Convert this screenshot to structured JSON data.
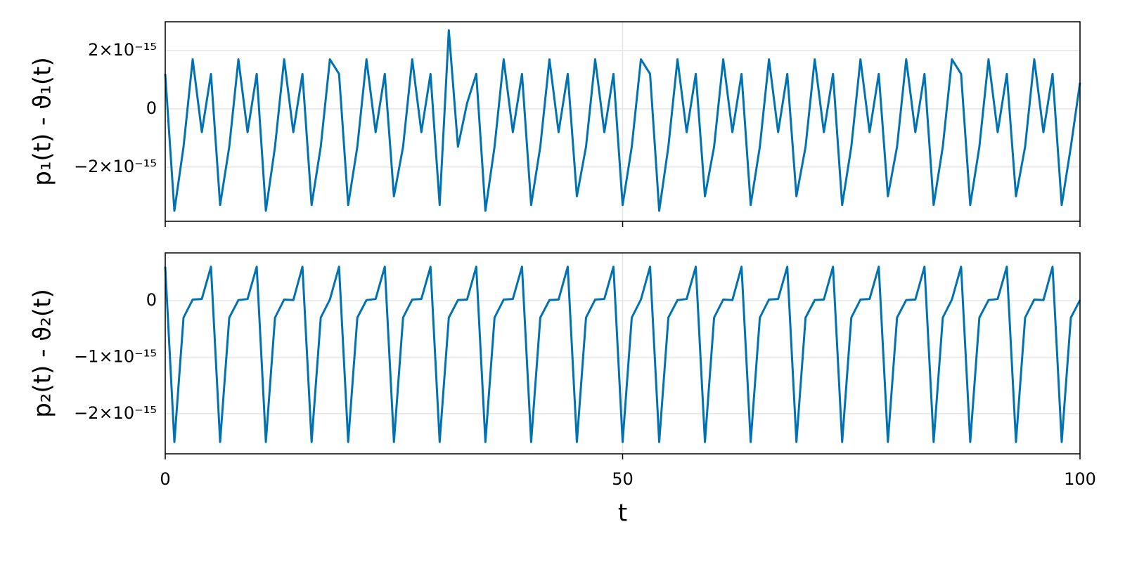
{
  "chart_data": [
    {
      "type": "line",
      "ylabel": "p₁(t) - ϑ₁(t)",
      "x": [
        0,
        1,
        2,
        3,
        4,
        5,
        6,
        7,
        8,
        9,
        10,
        11,
        12,
        13,
        14,
        15,
        16,
        17,
        18,
        19,
        20,
        21,
        22,
        23,
        24,
        25,
        26,
        27,
        28,
        29,
        30,
        31,
        32,
        33,
        34,
        35,
        36,
        37,
        38,
        39,
        40,
        41,
        42,
        43,
        44,
        45,
        46,
        47,
        48,
        49,
        50,
        51,
        52,
        53,
        54,
        55,
        56,
        57,
        58,
        59,
        60,
        61,
        62,
        63,
        64,
        65,
        66,
        67,
        68,
        69,
        70,
        71,
        72,
        73,
        74,
        75,
        76,
        77,
        78,
        79,
        80,
        81,
        82,
        83,
        84,
        85,
        86,
        87,
        88,
        89,
        90,
        91,
        92,
        93,
        94,
        95,
        96,
        97,
        98,
        99,
        100
      ],
      "series": [
        {
          "color": "#0072b2",
          "values": [
            1.2e-15,
            -3.5e-15,
            -1.3e-15,
            1.7e-15,
            -8e-16,
            1.2e-15,
            -3.3e-15,
            -1.3e-15,
            1.7e-15,
            -8e-16,
            1.2e-15,
            -3.5e-15,
            -1.3e-15,
            1.7e-15,
            -8e-16,
            1.2e-15,
            -3.3e-15,
            -1.3e-15,
            1.7e-15,
            1.2e-15,
            -3.3e-15,
            -1.3e-15,
            1.7e-15,
            -8e-16,
            1.2e-15,
            -3e-15,
            -1.3e-15,
            1.7e-15,
            -8e-16,
            1.2e-15,
            -3.3e-15,
            2.7e-15,
            -1.3e-15,
            2e-16,
            1.2e-15,
            -3.5e-15,
            -1.3e-15,
            1.7e-15,
            -8e-16,
            1.2e-15,
            -3.3e-15,
            -1.3e-15,
            1.7e-15,
            -8e-16,
            1.2e-15,
            -3e-15,
            -1.3e-15,
            1.7e-15,
            -8e-16,
            1.2e-15,
            -3.3e-15,
            -1.3e-15,
            1.7e-15,
            1.2e-15,
            -3.5e-15,
            -1.3e-15,
            1.7e-15,
            -8e-16,
            1.2e-15,
            -3e-15,
            -1.3e-15,
            1.7e-15,
            -8e-16,
            1.2e-15,
            -3.3e-15,
            -1.3e-15,
            1.7e-15,
            -8e-16,
            1.2e-15,
            -3e-15,
            -1.3e-15,
            1.7e-15,
            -8e-16,
            1.2e-15,
            -3.3e-15,
            -1.3e-15,
            1.7e-15,
            -8e-16,
            1.2e-15,
            -3e-15,
            -1.3e-15,
            1.7e-15,
            -8e-16,
            1.2e-15,
            -3.3e-15,
            -1.3e-15,
            1.7e-15,
            1.2e-15,
            -3.3e-15,
            -1.3e-15,
            1.7e-15,
            -8e-16,
            1.2e-15,
            -3e-15,
            -1.3e-15,
            1.7e-15,
            -8e-16,
            1.2e-15,
            -3.3e-15,
            -1.3e-15,
            9e-16
          ]
        }
      ],
      "xlim": [
        0,
        100
      ],
      "xticks": [
        0,
        50,
        100
      ],
      "ylim": [
        -3.86e-15,
        2.99e-15
      ],
      "yticks": [
        {
          "value": -2e-15,
          "label": "−2×10⁻¹⁵"
        },
        0,
        {
          "value": 2e-15,
          "label": "2×10⁻¹⁵"
        }
      ],
      "grid": true
    },
    {
      "type": "line",
      "ylabel": "p₂(t) - ϑ₂(t)",
      "xlabel": "t",
      "x": [
        0,
        1,
        2,
        3,
        4,
        5,
        6,
        7,
        8,
        9,
        10,
        11,
        12,
        13,
        14,
        15,
        16,
        17,
        18,
        19,
        20,
        21,
        22,
        23,
        24,
        25,
        26,
        27,
        28,
        29,
        30,
        31,
        32,
        33,
        34,
        35,
        36,
        37,
        38,
        39,
        40,
        41,
        42,
        43,
        44,
        45,
        46,
        47,
        48,
        49,
        50,
        51,
        52,
        53,
        54,
        55,
        56,
        57,
        58,
        59,
        60,
        61,
        62,
        63,
        64,
        65,
        66,
        67,
        68,
        69,
        70,
        71,
        72,
        73,
        74,
        75,
        76,
        77,
        78,
        79,
        80,
        81,
        82,
        83,
        84,
        85,
        86,
        87,
        88,
        89,
        90,
        91,
        92,
        93,
        94,
        95,
        96,
        97,
        98,
        99,
        100
      ],
      "series": [
        {
          "color": "#0072b2",
          "values": [
            6e-16,
            -2.5e-15,
            -3e-16,
            2e-17,
            3e-17,
            6e-16,
            -2.5e-15,
            -3e-16,
            1e-17,
            3e-17,
            6e-16,
            -2.5e-15,
            -3e-16,
            2e-17,
            1e-17,
            6e-16,
            -2.5e-15,
            -3e-16,
            2e-17,
            6e-16,
            -2.5e-15,
            -3e-16,
            1e-17,
            3e-17,
            6e-16,
            -2.5e-15,
            -3e-16,
            2e-17,
            3e-17,
            6e-16,
            -2.5e-15,
            -3e-16,
            1e-17,
            2e-17,
            6e-16,
            -2.5e-15,
            -3e-16,
            2e-17,
            3e-17,
            6e-16,
            -2.5e-15,
            -3e-16,
            1e-17,
            2e-17,
            6e-16,
            -2.5e-15,
            -3e-16,
            2e-17,
            3e-17,
            6e-16,
            -2.5e-15,
            -3e-16,
            2e-17,
            6e-16,
            -2.5e-15,
            -3e-16,
            1e-17,
            3e-17,
            6e-16,
            -2.5e-15,
            -3e-16,
            2e-17,
            1e-17,
            6e-16,
            -2.5e-15,
            -3e-16,
            2e-17,
            3e-17,
            6e-16,
            -2.5e-15,
            -3e-16,
            1e-17,
            2e-17,
            6e-16,
            -2.5e-15,
            -3e-16,
            2e-17,
            3e-17,
            6e-16,
            -2.5e-15,
            -3e-16,
            1e-17,
            2e-17,
            6e-16,
            -2.5e-15,
            -3e-16,
            2e-17,
            6e-16,
            -2.5e-15,
            -3e-16,
            1e-17,
            3e-17,
            6e-16,
            -2.5e-15,
            -3e-16,
            2e-17,
            1e-17,
            6e-16,
            -2.5e-15,
            -3e-16,
            1e-17
          ]
        }
      ],
      "xlim": [
        0,
        100
      ],
      "xticks": [
        0,
        50,
        100
      ],
      "ylim": [
        -2.71e-15,
        8.45e-16
      ],
      "yticks": [
        {
          "value": -2e-15,
          "label": "−2×10⁻¹⁵"
        },
        {
          "value": -1e-15,
          "label": "−1×10⁻¹⁵"
        },
        0
      ],
      "grid": true
    }
  ]
}
